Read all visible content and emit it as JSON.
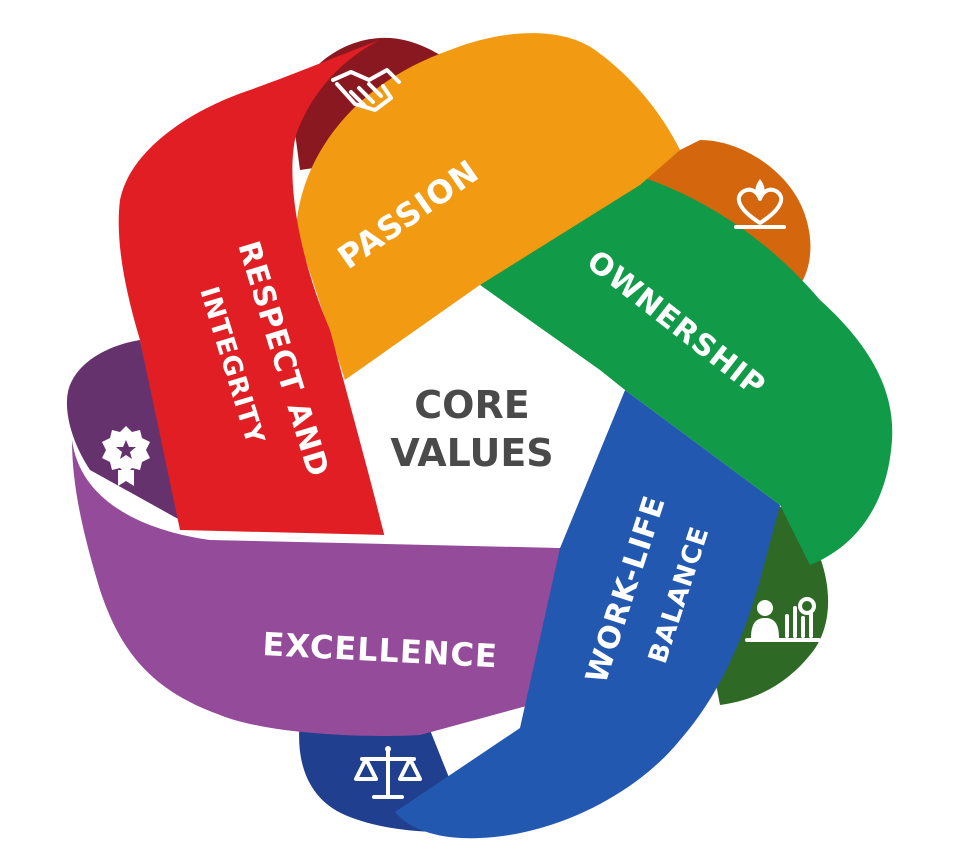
{
  "center": {
    "line1": "CORE",
    "line2": "VALUES"
  },
  "bands": [
    {
      "key": "passion",
      "label": "PASSION",
      "color": "#F29B12",
      "shade": "#D4670E",
      "icon": "heart-candle-icon"
    },
    {
      "key": "ownership",
      "label": "OWNERSHIP",
      "color": "#119A48",
      "shade": "#2E6A26",
      "icon": "businessman-chart-icon"
    },
    {
      "key": "work-life",
      "label_line1": "WORK-LIFE",
      "label_line2": "BALANCE",
      "color": "#2358B0",
      "shade": "#213F8F",
      "icon": "scales-icon"
    },
    {
      "key": "excellence",
      "label": "EXCELLENCE",
      "color": "#944B9A",
      "shade": "#66326E",
      "icon": "award-badge-icon"
    },
    {
      "key": "respect",
      "label_line1": "RESPECT AND",
      "label_line2": "INTEGRITY",
      "color": "#E01E23",
      "shade": "#8A1820",
      "icon": "handshake-icon"
    }
  ]
}
